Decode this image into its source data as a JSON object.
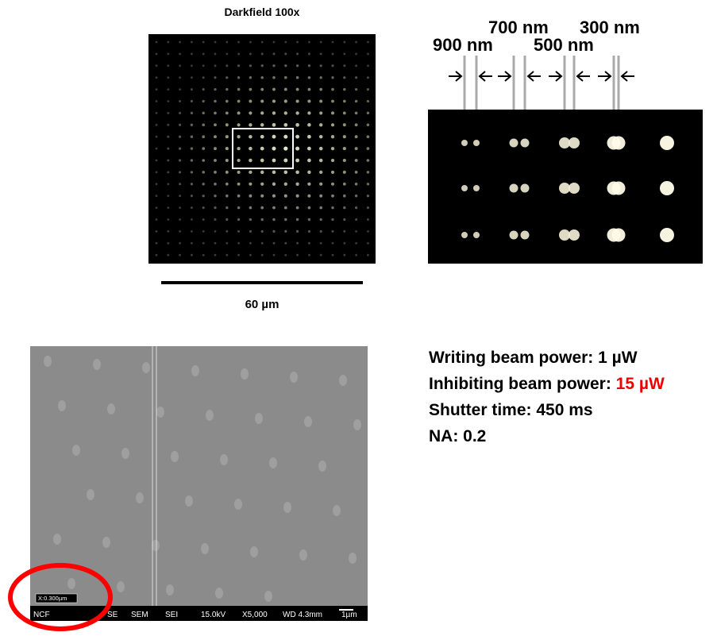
{
  "darkfield": {
    "title": "Darkfield 100x",
    "scale_label": "60 µm"
  },
  "inset": {
    "labels": [
      "700 nm",
      "300 nm",
      "900 nm",
      "500 nm"
    ]
  },
  "sem": {
    "marker": "X:0.300µm",
    "bar": [
      "NCF",
      "SE",
      "SEM",
      "SEI",
      "15.0kV",
      "X5,000",
      "WD 4.3mm",
      "1µm"
    ]
  },
  "parameters": [
    [
      "Writing beam power: 1 µW"
    ],
    [
      "Inhibiting beam power: ",
      "15 µW"
    ],
    [
      "Shutter time: 450 ms"
    ],
    [
      "NA: 0.2"
    ]
  ]
}
